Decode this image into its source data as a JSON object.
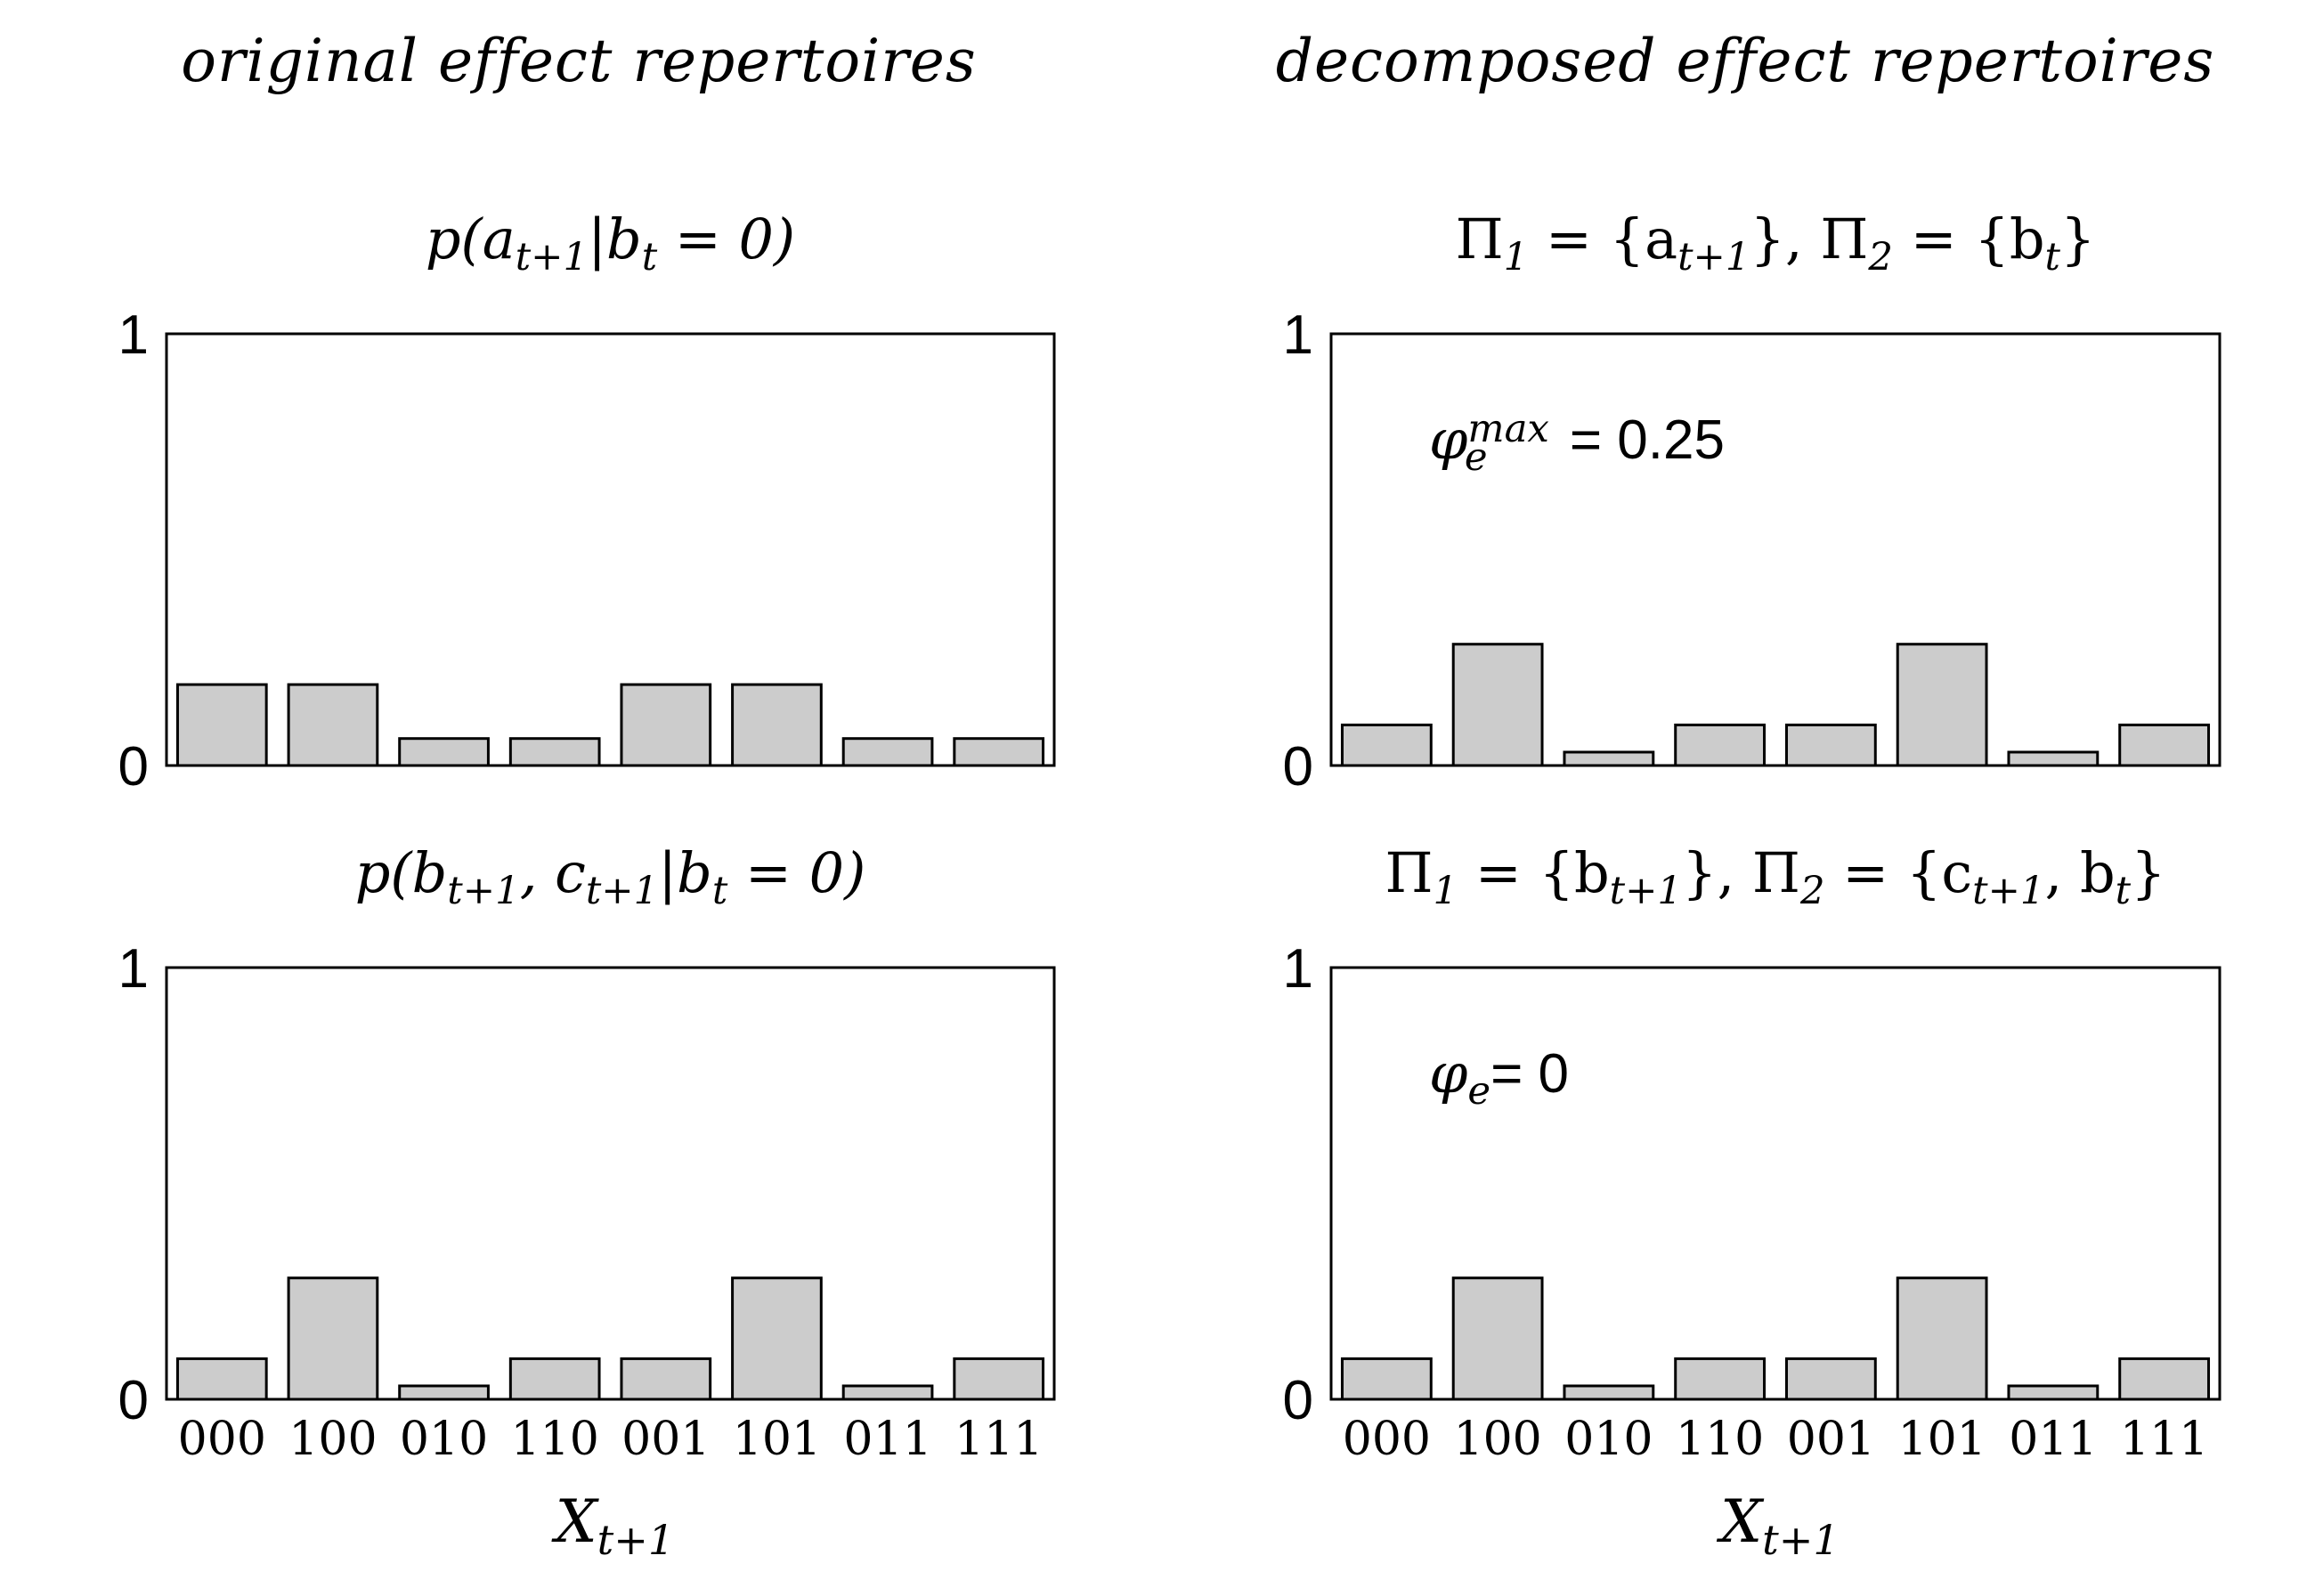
{
  "headings": {
    "left": "original effect repertoires",
    "right": "decomposed effect repertoires"
  },
  "chart_data": [
    {
      "type": "bar",
      "title": "p(a_{t+1}|b_t = 0)",
      "title_parts": [
        "p(a",
        "t+1",
        "|b",
        "t",
        " = 0)"
      ],
      "categories": [
        "000",
        "100",
        "010",
        "110",
        "001",
        "101",
        "011",
        "111"
      ],
      "values": [
        0.1875,
        0.1875,
        0.0625,
        0.0625,
        0.1875,
        0.1875,
        0.0625,
        0.0625
      ],
      "ylim": [
        0,
        1
      ],
      "yticks": [
        "0",
        "1"
      ],
      "xlabel": "",
      "annotation": null
    },
    {
      "type": "bar",
      "title": "Π_1 = {a_{t+1}}, Π_2 = {b_t}",
      "title_parts": [
        "Π",
        "1",
        " = {a",
        "t+1",
        "}, Π",
        "2",
        " = {b",
        "t",
        "}"
      ],
      "categories": [
        "000",
        "100",
        "010",
        "110",
        "001",
        "101",
        "011",
        "111"
      ],
      "values": [
        0.094,
        0.281,
        0.031,
        0.094,
        0.094,
        0.281,
        0.031,
        0.094
      ],
      "ylim": [
        0,
        1
      ],
      "yticks": [
        "0",
        "1"
      ],
      "xlabel": "",
      "annotation": {
        "symbol": "φ",
        "sub": "e",
        "sup": "max",
        "text": " = 0.25"
      }
    },
    {
      "type": "bar",
      "title": "p(b_{t+1}, c_{t+1}|b_t = 0)",
      "title_parts": [
        "p(b",
        "t+1",
        ", c",
        "t+1",
        "|b",
        "t",
        " = 0)"
      ],
      "categories": [
        "000",
        "100",
        "010",
        "110",
        "001",
        "101",
        "011",
        "111"
      ],
      "values": [
        0.094,
        0.281,
        0.031,
        0.094,
        0.094,
        0.281,
        0.031,
        0.094
      ],
      "ylim": [
        0,
        1
      ],
      "yticks": [
        "0",
        "1"
      ],
      "xlabel": "X_{t+1}",
      "xlabel_parts": [
        "X",
        "t+1"
      ],
      "annotation": null
    },
    {
      "type": "bar",
      "title": "Π_1 = {b_{t+1}}, Π_2 = {c_{t+1}, b_t}",
      "title_parts": [
        "Π",
        "1",
        " = {b",
        "t+1",
        "}, Π",
        "2",
        " = {c",
        "t+1",
        ", b",
        "t",
        "}"
      ],
      "categories": [
        "000",
        "100",
        "010",
        "110",
        "001",
        "101",
        "011",
        "111"
      ],
      "values": [
        0.094,
        0.281,
        0.031,
        0.094,
        0.094,
        0.281,
        0.031,
        0.094
      ],
      "ylim": [
        0,
        1
      ],
      "yticks": [
        "0",
        "1"
      ],
      "xlabel": "X_{t+1}",
      "xlabel_parts": [
        "X",
        "t+1"
      ],
      "annotation": {
        "symbol": "φ",
        "sub": "e",
        "sup": "",
        "text": "= 0"
      }
    }
  ],
  "colors": {
    "bar_fill": "#cccccc",
    "bar_stroke": "#000000",
    "frame": "#000000"
  }
}
